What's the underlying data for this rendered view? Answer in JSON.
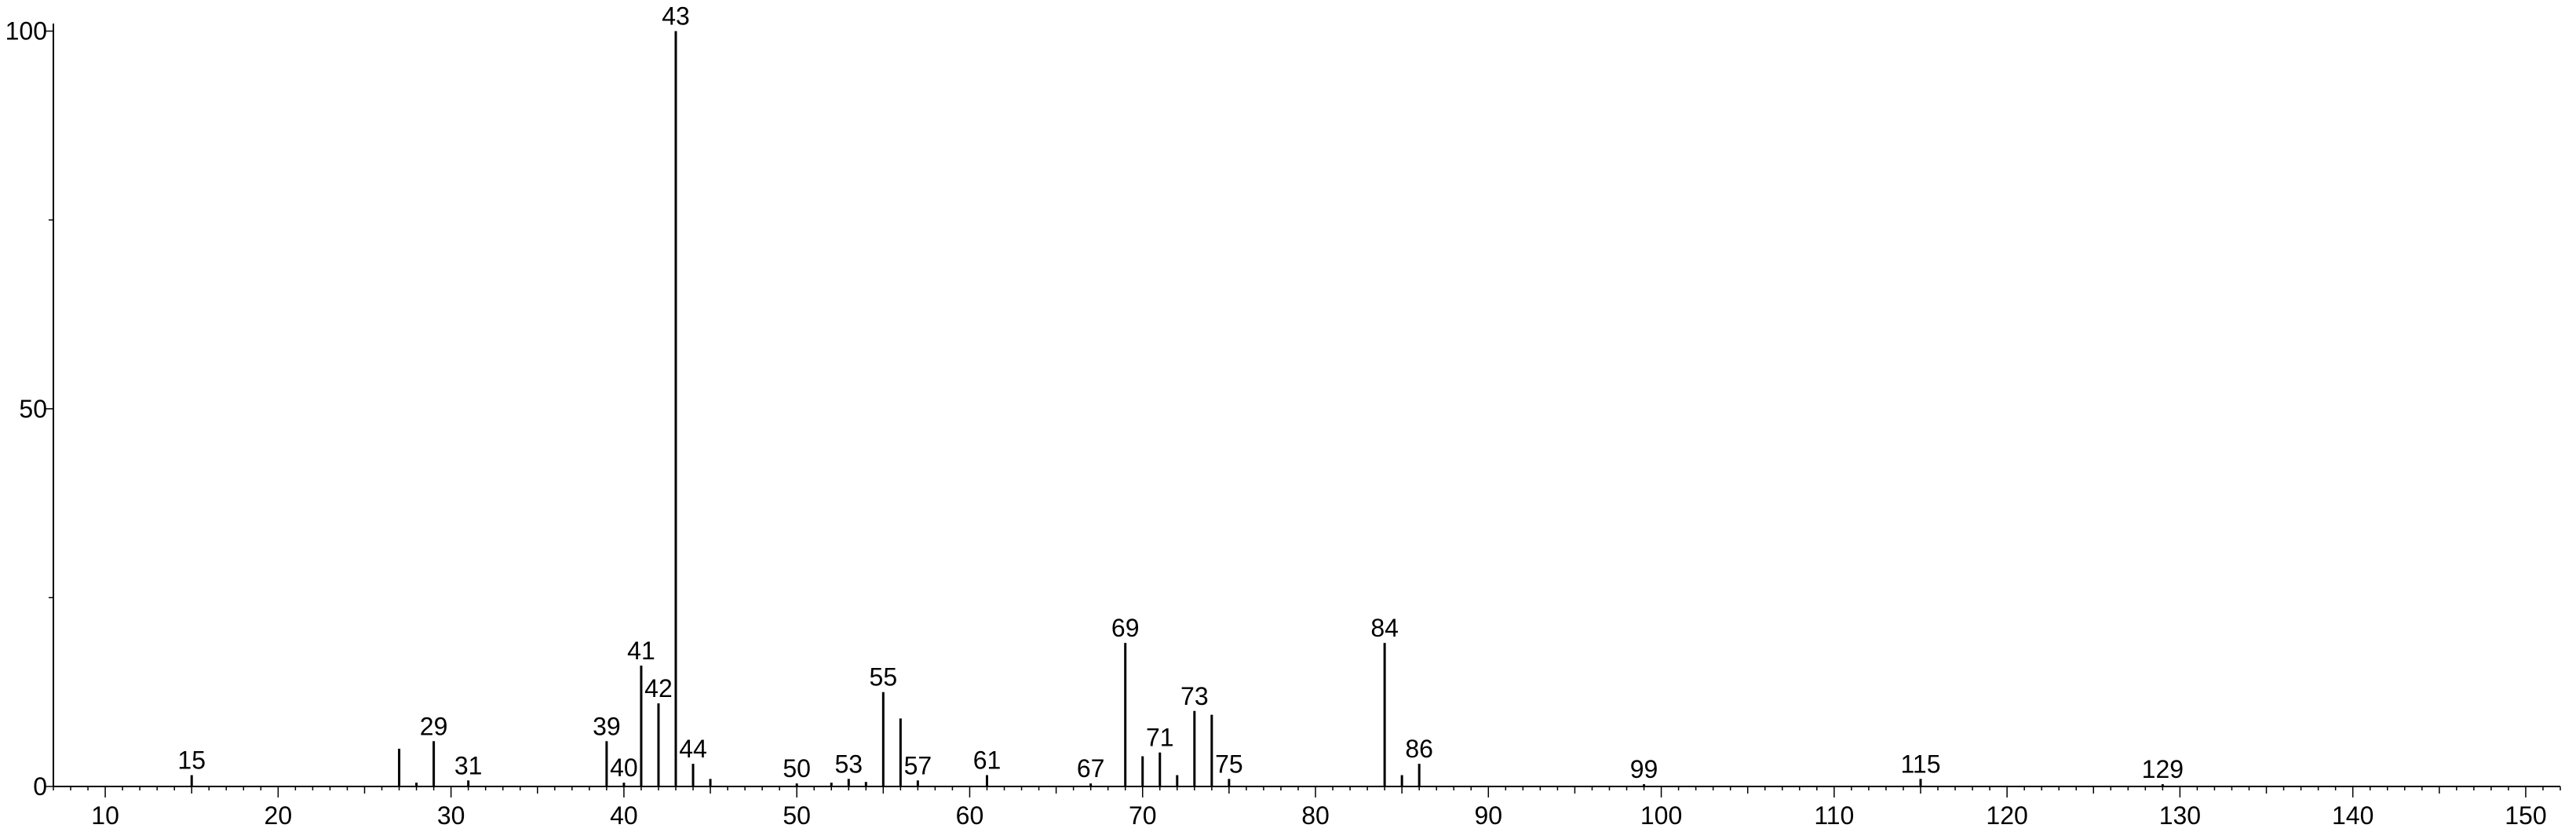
{
  "chart_data": {
    "type": "bar",
    "title": "",
    "xlabel": "",
    "ylabel": "",
    "xlim": [
      7,
      152
    ],
    "ylim": [
      0,
      101
    ],
    "grid": false,
    "x_ticks": [
      10,
      20,
      30,
      40,
      50,
      60,
      70,
      80,
      90,
      100,
      110,
      120,
      130,
      140,
      150
    ],
    "y_ticks": [
      0,
      50,
      100
    ],
    "series": [
      {
        "x": [
          15,
          27,
          28,
          29,
          31,
          39,
          40,
          41,
          42,
          43,
          44,
          45,
          50,
          52,
          53,
          54,
          55,
          56,
          57,
          61,
          67,
          69,
          70,
          71,
          72,
          73,
          74,
          75,
          84,
          85,
          86,
          99,
          115,
          129
        ],
        "values": [
          1.5,
          5,
          0.5,
          6,
          0.8,
          6,
          0.5,
          16,
          11,
          100,
          3,
          1,
          0.4,
          0.5,
          1,
          0.6,
          12.5,
          9,
          0.8,
          1.5,
          0.4,
          19,
          4,
          4.5,
          1.5,
          10,
          9.5,
          1,
          19,
          1.5,
          3,
          0.3,
          1,
          0.3
        ]
      }
    ],
    "peak_labels": [
      {
        "x": 15,
        "label": "15"
      },
      {
        "x": 29,
        "label": "29"
      },
      {
        "x": 31,
        "label": "31"
      },
      {
        "x": 39,
        "label": "39"
      },
      {
        "x": 40,
        "label": "40"
      },
      {
        "x": 41,
        "label": "41"
      },
      {
        "x": 42,
        "label": "42"
      },
      {
        "x": 43,
        "label": "43"
      },
      {
        "x": 44,
        "label": "44"
      },
      {
        "x": 50,
        "label": "50"
      },
      {
        "x": 53,
        "label": "53"
      },
      {
        "x": 55,
        "label": "55"
      },
      {
        "x": 57,
        "label": "57"
      },
      {
        "x": 61,
        "label": "61"
      },
      {
        "x": 67,
        "label": "67"
      },
      {
        "x": 69,
        "label": "69"
      },
      {
        "x": 71,
        "label": "71"
      },
      {
        "x": 73,
        "label": "73"
      },
      {
        "x": 75,
        "label": "75"
      },
      {
        "x": 84,
        "label": "84"
      },
      {
        "x": 86,
        "label": "86"
      },
      {
        "x": 99,
        "label": "99"
      },
      {
        "x": 115,
        "label": "115"
      },
      {
        "x": 129,
        "label": "129"
      }
    ],
    "colors": {
      "bars": "#000000",
      "axes": "#000000",
      "background": "#ffffff"
    }
  }
}
